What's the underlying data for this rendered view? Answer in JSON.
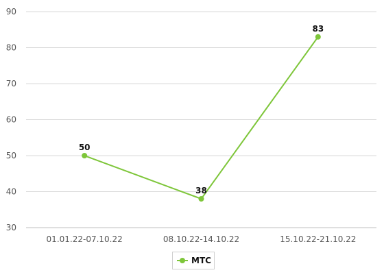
{
  "chart_data": {
    "type": "line",
    "categories": [
      "01.01.22-07.10.22",
      "08.10.22-14.10.22",
      "15.10.22-21.10.22"
    ],
    "series": [
      {
        "name": "МТС",
        "values": [
          50,
          38,
          83
        ],
        "color": "#7ec63a"
      }
    ],
    "ylim": [
      30,
      90
    ],
    "yticks": [
      30,
      40,
      50,
      60,
      70,
      80,
      90
    ],
    "grid": true,
    "legend_position": "bottom-center",
    "data_labels": true
  }
}
